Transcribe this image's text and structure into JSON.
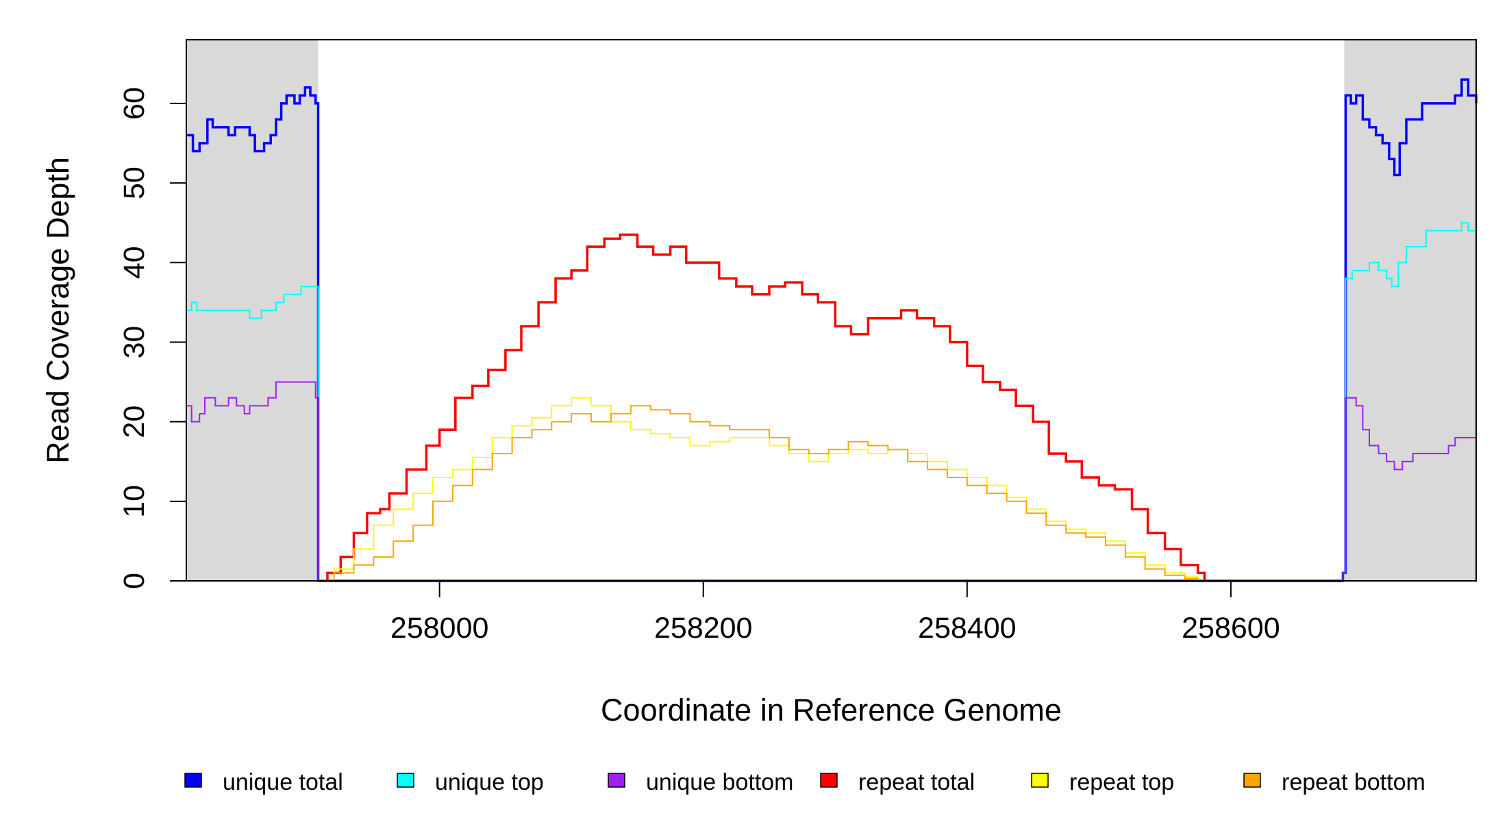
{
  "chart_data": {
    "type": "line",
    "xlabel": "Coordinate in Reference Genome",
    "ylabel": "Read Coverage Depth",
    "xlim": [
      257808,
      258786
    ],
    "ylim": [
      0,
      68
    ],
    "x_ticks": [
      258000,
      258200,
      258400,
      258600
    ],
    "x_tick_labels": [
      "258000",
      "258200",
      "258400",
      "258600"
    ],
    "y_ticks": [
      0,
      10,
      20,
      30,
      40,
      50,
      60
    ],
    "y_tick_labels": [
      "0",
      "10",
      "20",
      "30",
      "40",
      "50",
      "60"
    ],
    "shaded_regions": [
      [
        257808,
        257908
      ],
      [
        258686,
        258786
      ]
    ],
    "shaded_color": "#d9d9d9",
    "legend": {
      "placement": "bottom"
    },
    "series": [
      {
        "name": "unique total",
        "color": "#0000ff",
        "points": [
          [
            257808,
            56
          ],
          [
            257813,
            54
          ],
          [
            257818,
            55
          ],
          [
            257824,
            58
          ],
          [
            257828,
            57
          ],
          [
            257836,
            57
          ],
          [
            257840,
            56
          ],
          [
            257845,
            57
          ],
          [
            257850,
            57
          ],
          [
            257856,
            56
          ],
          [
            257860,
            54
          ],
          [
            257867,
            55
          ],
          [
            257872,
            56
          ],
          [
            257876,
            58
          ],
          [
            257880,
            60
          ],
          [
            257884,
            61
          ],
          [
            257890,
            60
          ],
          [
            257894,
            61
          ],
          [
            257898,
            62
          ],
          [
            257902,
            61
          ],
          [
            257906,
            60
          ],
          [
            257908,
            0
          ],
          [
            258683,
            0
          ],
          [
            258685,
            1
          ],
          [
            258687,
            61
          ],
          [
            258691,
            60
          ],
          [
            258695,
            61
          ],
          [
            258700,
            58
          ],
          [
            258705,
            57
          ],
          [
            258710,
            56
          ],
          [
            258715,
            55
          ],
          [
            258720,
            53
          ],
          [
            258724,
            51
          ],
          [
            258728,
            55
          ],
          [
            258733,
            58
          ],
          [
            258738,
            58
          ],
          [
            258745,
            60
          ],
          [
            258765,
            60
          ],
          [
            258770,
            61
          ],
          [
            258775,
            63
          ],
          [
            258780,
            61
          ],
          [
            258786,
            60
          ]
        ]
      },
      {
        "name": "unique top",
        "color": "#00ffff",
        "points": [
          [
            257808,
            34
          ],
          [
            257812,
            35
          ],
          [
            257816,
            34
          ],
          [
            257820,
            34
          ],
          [
            257832,
            34
          ],
          [
            257840,
            34
          ],
          [
            257850,
            34
          ],
          [
            257856,
            33
          ],
          [
            257865,
            34
          ],
          [
            257870,
            34
          ],
          [
            257876,
            35
          ],
          [
            257882,
            36
          ],
          [
            257888,
            36
          ],
          [
            257895,
            37
          ],
          [
            257900,
            37
          ],
          [
            257906,
            37
          ],
          [
            257908,
            0
          ],
          [
            258683,
            0
          ],
          [
            258685,
            1
          ],
          [
            258687,
            38
          ],
          [
            258692,
            39
          ],
          [
            258700,
            39
          ],
          [
            258705,
            40
          ],
          [
            258712,
            39
          ],
          [
            258718,
            38
          ],
          [
            258722,
            37
          ],
          [
            258727,
            40
          ],
          [
            258733,
            42
          ],
          [
            258740,
            42
          ],
          [
            258748,
            44
          ],
          [
            258770,
            44
          ],
          [
            258775,
            45
          ],
          [
            258780,
            44
          ],
          [
            258786,
            42
          ]
        ]
      },
      {
        "name": "unique bottom",
        "color": "#a020f0",
        "points": [
          [
            257808,
            22
          ],
          [
            257812,
            20
          ],
          [
            257818,
            21
          ],
          [
            257822,
            23
          ],
          [
            257830,
            22
          ],
          [
            257835,
            22
          ],
          [
            257840,
            23
          ],
          [
            257846,
            22
          ],
          [
            257852,
            21
          ],
          [
            257856,
            22
          ],
          [
            257862,
            22
          ],
          [
            257870,
            23
          ],
          [
            257876,
            25
          ],
          [
            257900,
            25
          ],
          [
            257906,
            23
          ],
          [
            257908,
            0
          ],
          [
            258683,
            0
          ],
          [
            258685,
            1
          ],
          [
            258687,
            23
          ],
          [
            258695,
            22
          ],
          [
            258700,
            19
          ],
          [
            258705,
            17
          ],
          [
            258712,
            16
          ],
          [
            258718,
            15
          ],
          [
            258724,
            14
          ],
          [
            258730,
            15
          ],
          [
            258738,
            16
          ],
          [
            258760,
            16
          ],
          [
            258765,
            17
          ],
          [
            258770,
            18
          ],
          [
            258780,
            18
          ],
          [
            258786,
            20
          ]
        ]
      },
      {
        "name": "repeat total",
        "color": "#ff0000",
        "points": [
          [
            257908,
            0
          ],
          [
            257915,
            1
          ],
          [
            257925,
            3
          ],
          [
            257935,
            6
          ],
          [
            257945,
            8.5
          ],
          [
            257955,
            9
          ],
          [
            257962,
            11
          ],
          [
            257975,
            14
          ],
          [
            257990,
            17
          ],
          [
            258000,
            19
          ],
          [
            258012,
            23
          ],
          [
            258025,
            24.5
          ],
          [
            258037,
            26.5
          ],
          [
            258050,
            29
          ],
          [
            258062,
            32
          ],
          [
            258075,
            35
          ],
          [
            258088,
            38
          ],
          [
            258100,
            39
          ],
          [
            258112,
            42
          ],
          [
            258125,
            43
          ],
          [
            258137,
            43.5
          ],
          [
            258150,
            42
          ],
          [
            258162,
            41
          ],
          [
            258175,
            42
          ],
          [
            258187,
            40
          ],
          [
            258200,
            40
          ],
          [
            258212,
            38
          ],
          [
            258225,
            37
          ],
          [
            258237,
            36
          ],
          [
            258250,
            37
          ],
          [
            258262,
            37.5
          ],
          [
            258275,
            36
          ],
          [
            258287,
            35
          ],
          [
            258300,
            32
          ],
          [
            258312,
            31
          ],
          [
            258325,
            33
          ],
          [
            258337,
            33
          ],
          [
            258350,
            34
          ],
          [
            258362,
            33
          ],
          [
            258375,
            32
          ],
          [
            258387,
            30
          ],
          [
            258400,
            27
          ],
          [
            258412,
            25
          ],
          [
            258425,
            24
          ],
          [
            258437,
            22
          ],
          [
            258450,
            20
          ],
          [
            258462,
            16
          ],
          [
            258475,
            15
          ],
          [
            258487,
            13
          ],
          [
            258500,
            12
          ],
          [
            258512,
            11.5
          ],
          [
            258525,
            9
          ],
          [
            258537,
            6
          ],
          [
            258550,
            4
          ],
          [
            258562,
            2
          ],
          [
            258575,
            1
          ],
          [
            258580,
            0
          ]
        ]
      },
      {
        "name": "repeat top",
        "color": "#ffff00",
        "points": [
          [
            257908,
            0
          ],
          [
            257920,
            1.5
          ],
          [
            257935,
            4
          ],
          [
            257950,
            7
          ],
          [
            257965,
            9
          ],
          [
            257980,
            11
          ],
          [
            257995,
            13
          ],
          [
            258010,
            14
          ],
          [
            258025,
            15.5
          ],
          [
            258040,
            18
          ],
          [
            258055,
            19.5
          ],
          [
            258070,
            20.5
          ],
          [
            258085,
            22
          ],
          [
            258100,
            23
          ],
          [
            258115,
            22
          ],
          [
            258130,
            20
          ],
          [
            258145,
            19
          ],
          [
            258160,
            18.5
          ],
          [
            258175,
            18
          ],
          [
            258190,
            17
          ],
          [
            258205,
            17.5
          ],
          [
            258220,
            18
          ],
          [
            258235,
            18
          ],
          [
            258250,
            17
          ],
          [
            258265,
            16
          ],
          [
            258280,
            15
          ],
          [
            258295,
            16
          ],
          [
            258310,
            16.5
          ],
          [
            258325,
            16
          ],
          [
            258340,
            16.5
          ],
          [
            258355,
            16
          ],
          [
            258370,
            15
          ],
          [
            258385,
            14
          ],
          [
            258400,
            13
          ],
          [
            258415,
            12
          ],
          [
            258430,
            10.5
          ],
          [
            258445,
            9
          ],
          [
            258460,
            7.5
          ],
          [
            258475,
            6.5
          ],
          [
            258490,
            6
          ],
          [
            258505,
            5
          ],
          [
            258520,
            3.5
          ],
          [
            258535,
            2
          ],
          [
            258550,
            1
          ],
          [
            258565,
            0.5
          ],
          [
            258575,
            0
          ]
        ]
      },
      {
        "name": "repeat bottom",
        "color": "#ffa500",
        "points": [
          [
            257908,
            0
          ],
          [
            257920,
            1
          ],
          [
            257935,
            2
          ],
          [
            257950,
            3
          ],
          [
            257965,
            5
          ],
          [
            257980,
            7
          ],
          [
            257995,
            10
          ],
          [
            258010,
            12
          ],
          [
            258025,
            14
          ],
          [
            258040,
            16
          ],
          [
            258055,
            18
          ],
          [
            258070,
            19
          ],
          [
            258085,
            20
          ],
          [
            258100,
            21
          ],
          [
            258115,
            20
          ],
          [
            258130,
            21
          ],
          [
            258145,
            22
          ],
          [
            258160,
            21.5
          ],
          [
            258175,
            21
          ],
          [
            258190,
            20
          ],
          [
            258205,
            19.5
          ],
          [
            258220,
            19
          ],
          [
            258235,
            19
          ],
          [
            258250,
            18
          ],
          [
            258265,
            16.5
          ],
          [
            258280,
            16
          ],
          [
            258295,
            16.5
          ],
          [
            258310,
            17.5
          ],
          [
            258325,
            17
          ],
          [
            258340,
            16.5
          ],
          [
            258355,
            15
          ],
          [
            258370,
            14
          ],
          [
            258385,
            13
          ],
          [
            258400,
            12
          ],
          [
            258415,
            11
          ],
          [
            258430,
            10
          ],
          [
            258445,
            8.5
          ],
          [
            258460,
            7
          ],
          [
            258475,
            6
          ],
          [
            258490,
            5.5
          ],
          [
            258505,
            4.5
          ],
          [
            258520,
            3
          ],
          [
            258535,
            1.5
          ],
          [
            258550,
            0.7
          ],
          [
            258565,
            0.3
          ],
          [
            258575,
            0
          ]
        ]
      }
    ]
  }
}
